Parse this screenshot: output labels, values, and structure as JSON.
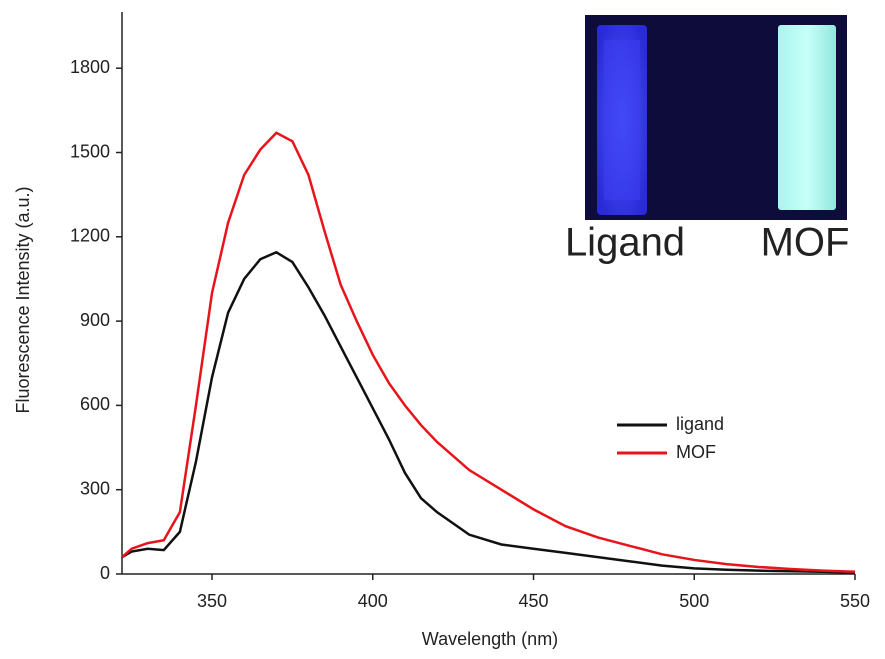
{
  "chart_data": {
    "type": "line",
    "x_label": "Wavelength (nm)",
    "y_label": "Fluorescence Intensity (a.u.)",
    "x": [
      322,
      325,
      330,
      335,
      340,
      345,
      350,
      355,
      360,
      365,
      370,
      375,
      380,
      385,
      390,
      395,
      400,
      405,
      410,
      415,
      420,
      430,
      440,
      450,
      460,
      470,
      480,
      490,
      500,
      510,
      520,
      530,
      540,
      550
    ],
    "series": [
      {
        "name": "ligand",
        "color": "#111111",
        "values": [
          60,
          80,
          90,
          85,
          150,
          400,
          700,
          930,
          1050,
          1120,
          1145,
          1110,
          1020,
          920,
          810,
          700,
          590,
          480,
          360,
          270,
          220,
          140,
          105,
          90,
          75,
          60,
          45,
          30,
          20,
          15,
          12,
          10,
          8,
          5
        ]
      },
      {
        "name": "MOF",
        "color": "#e8141b",
        "values": [
          60,
          90,
          110,
          120,
          220,
          600,
          1000,
          1250,
          1420,
          1510,
          1570,
          1540,
          1420,
          1220,
          1030,
          900,
          780,
          680,
          600,
          530,
          470,
          370,
          300,
          230,
          170,
          130,
          100,
          70,
          50,
          35,
          25,
          18,
          12,
          8
        ]
      }
    ],
    "xlim": [
      322,
      550
    ],
    "xticks": [
      350,
      400,
      450,
      500,
      550
    ],
    "ylim": [
      0,
      2000
    ],
    "yticks": [
      0,
      300,
      600,
      900,
      1200,
      1500,
      1800
    ],
    "legend": "center-right",
    "inset_labels": [
      "Ligand",
      "MOF"
    ]
  }
}
